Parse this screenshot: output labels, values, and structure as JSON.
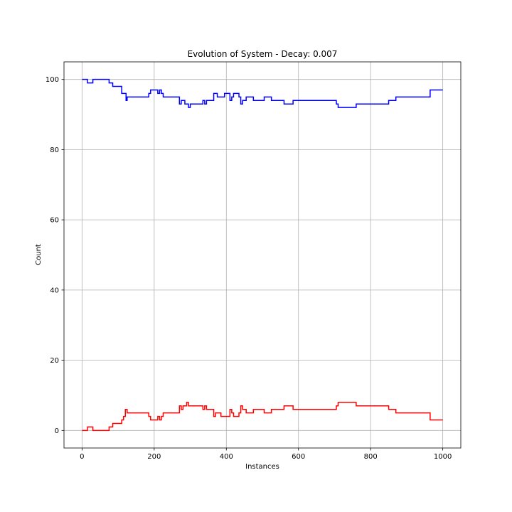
{
  "chart_data": {
    "type": "line",
    "title": "Evolution of System - Decay: 0.007",
    "xlabel": "Instances",
    "ylabel": "Count",
    "xlim": [
      -50,
      1050
    ],
    "ylim": [
      -5,
      105
    ],
    "xticks": [
      0,
      200,
      400,
      600,
      800,
      1000
    ],
    "yticks": [
      0,
      20,
      40,
      60,
      80,
      100
    ],
    "grid": true,
    "line_style": "step",
    "series": [
      {
        "color": "#0000ff",
        "x": [
          0,
          15,
          30,
          75,
          85,
          110,
          115,
          122,
          125,
          185,
          190,
          210,
          215,
          220,
          225,
          230,
          270,
          275,
          280,
          285,
          295,
          300,
          335,
          340,
          345,
          365,
          370,
          375,
          380,
          385,
          395,
          410,
          415,
          420,
          425,
          435,
          440,
          445,
          455,
          465,
          475,
          505,
          520,
          525,
          560,
          585,
          700,
          705,
          710,
          720,
          760,
          850,
          870,
          875,
          965,
          1000
        ],
        "y": [
          100,
          99,
          100,
          99,
          98,
          96,
          96,
          94,
          95,
          96,
          97,
          96,
          97,
          96,
          95,
          95,
          93,
          94,
          94,
          93,
          92,
          93,
          94,
          93,
          94,
          96,
          96,
          95,
          95,
          95,
          96,
          94,
          95,
          96,
          96,
          95,
          93,
          94,
          95,
          95,
          94,
          95,
          95,
          94,
          93,
          94,
          94,
          93,
          92,
          92,
          93,
          94,
          95,
          95,
          97,
          97
        ]
      },
      {
        "color": "#ff0000",
        "x": [
          0,
          15,
          30,
          75,
          85,
          110,
          115,
          120,
          122,
          125,
          185,
          190,
          210,
          215,
          220,
          225,
          230,
          270,
          275,
          280,
          290,
          295,
          300,
          335,
          340,
          345,
          365,
          370,
          375,
          380,
          385,
          395,
          410,
          415,
          420,
          425,
          435,
          440,
          445,
          455,
          465,
          475,
          505,
          520,
          525,
          560,
          585,
          700,
          705,
          710,
          720,
          760,
          850,
          870,
          875,
          965,
          1000
        ],
        "y": [
          0,
          1,
          0,
          1,
          2,
          3,
          4,
          6,
          6,
          5,
          4,
          3,
          4,
          3,
          4,
          5,
          5,
          7,
          6,
          7,
          8,
          7,
          7,
          6,
          7,
          6,
          4,
          5,
          5,
          5,
          4,
          4,
          6,
          5,
          4,
          4,
          5,
          7,
          6,
          5,
          5,
          6,
          5,
          5,
          6,
          7,
          6,
          6,
          7,
          8,
          8,
          7,
          6,
          5,
          5,
          3,
          3
        ]
      }
    ]
  }
}
